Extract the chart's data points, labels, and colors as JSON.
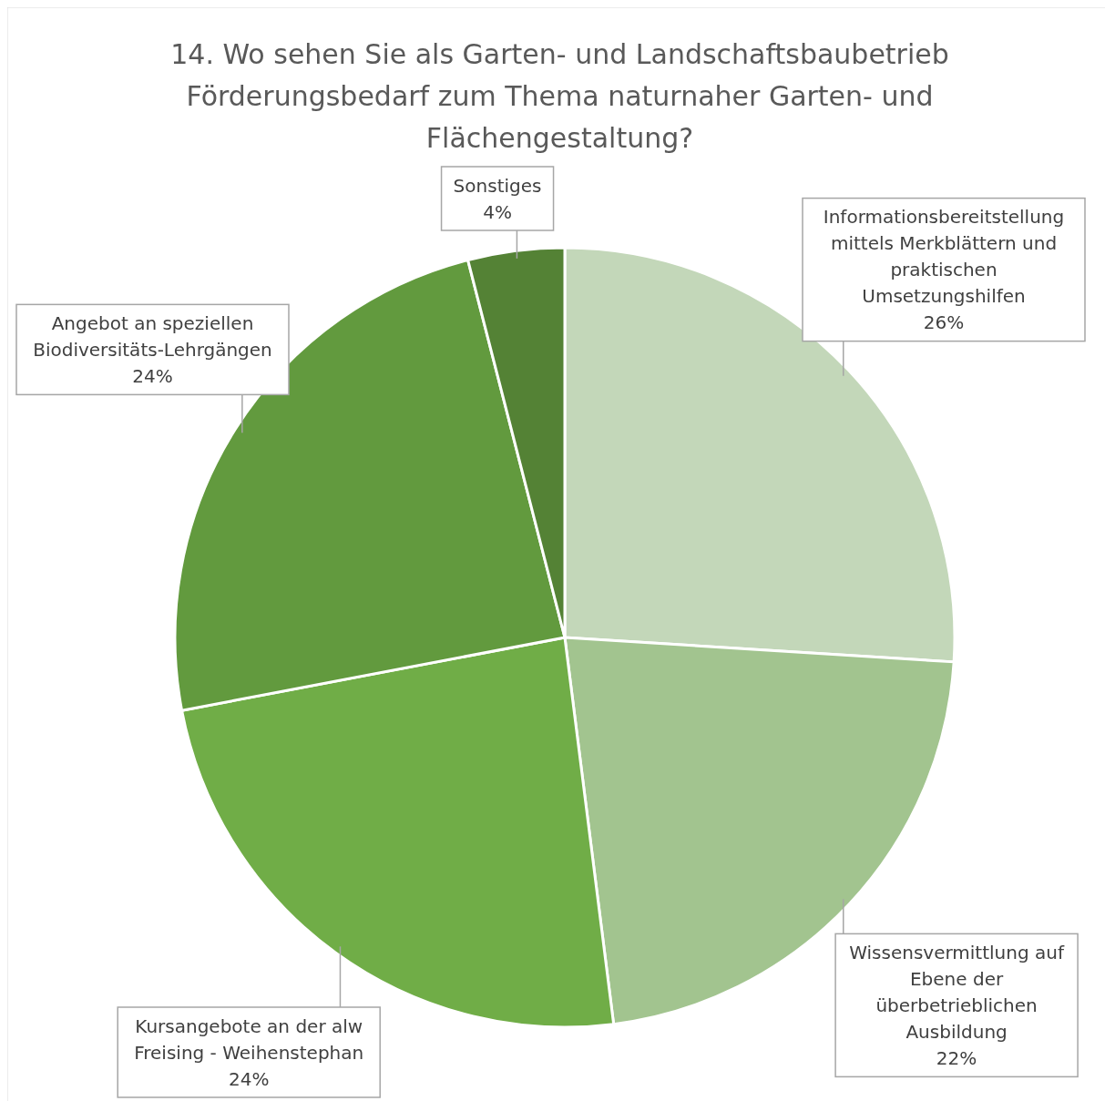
{
  "chart_data": {
    "type": "pie",
    "title": "14. Wo sehen Sie als Garten- und Landschaftsbaubetrieb Förderungsbedarf zum Thema naturnaher Garten- und Flächengestaltung?",
    "categories": [
      "Informationsbereitstellung mittels Merkblättern und praktischen Umsetzungshilfen",
      "Wissensvermittlung auf Ebene der überbetrieblichen Ausbildung",
      "Kursangebote an der alw Freising - Weihenstephan",
      "Angebot an speziellen Biodiversitäts-Lehrgängen",
      "Sonstiges"
    ],
    "values": [
      26,
      22,
      24,
      24,
      4
    ],
    "colors": [
      "#c3d7b9",
      "#a2c48f",
      "#70ad47",
      "#629a3e",
      "#548235"
    ],
    "value_labels": [
      "26%",
      "22%",
      "24%",
      "24%",
      "4%"
    ],
    "legend": false
  }
}
